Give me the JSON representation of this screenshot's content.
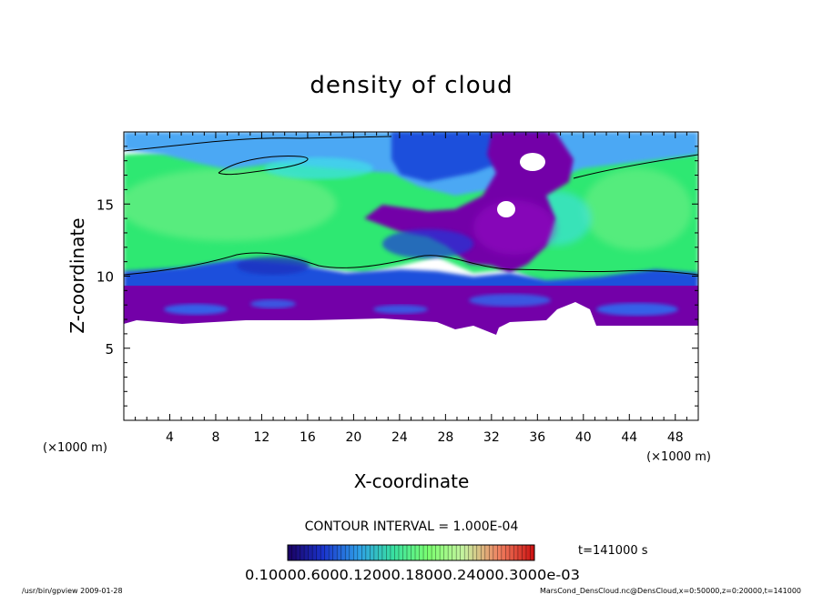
{
  "chart_data": {
    "type": "heatmap",
    "title": "density of cloud",
    "xlabel": "X-coordinate",
    "ylabel": "Z-coordinate",
    "x_unit": "(×1000 m)",
    "x_unit_right": "(×1000 m)",
    "xlim": [
      0,
      50
    ],
    "ylim": [
      0,
      20
    ],
    "x_ticks": [
      4,
      8,
      12,
      16,
      20,
      24,
      28,
      32,
      36,
      40,
      44,
      48
    ],
    "y_ticks": [
      5,
      10,
      15
    ],
    "contour_interval": "CONTOUR INTERVAL = 1.000E-04",
    "time_label": "t=141000 s",
    "colorbar_labels": "0.10000.6000.12000.18000.24000.3000e-03",
    "colorbar_colors": [
      "#1a0060",
      "#1a33cc",
      "#2e9ee8",
      "#38e0a0",
      "#7cff70",
      "#c6f2a0",
      "#f08060",
      "#cc1010"
    ],
    "colors": {
      "below_ground": "#ffffff",
      "low": "#7300a8",
      "mid": "#1e50dc",
      "high": "#2ee872",
      "top": "#4ca8f4"
    },
    "footer_left": "/usr/bin/gpview  2009-01-28",
    "footer_right": "MarsCond_DensCloud.nc@DensCloud,x=0:50000,z=0:20000,t=141000"
  }
}
